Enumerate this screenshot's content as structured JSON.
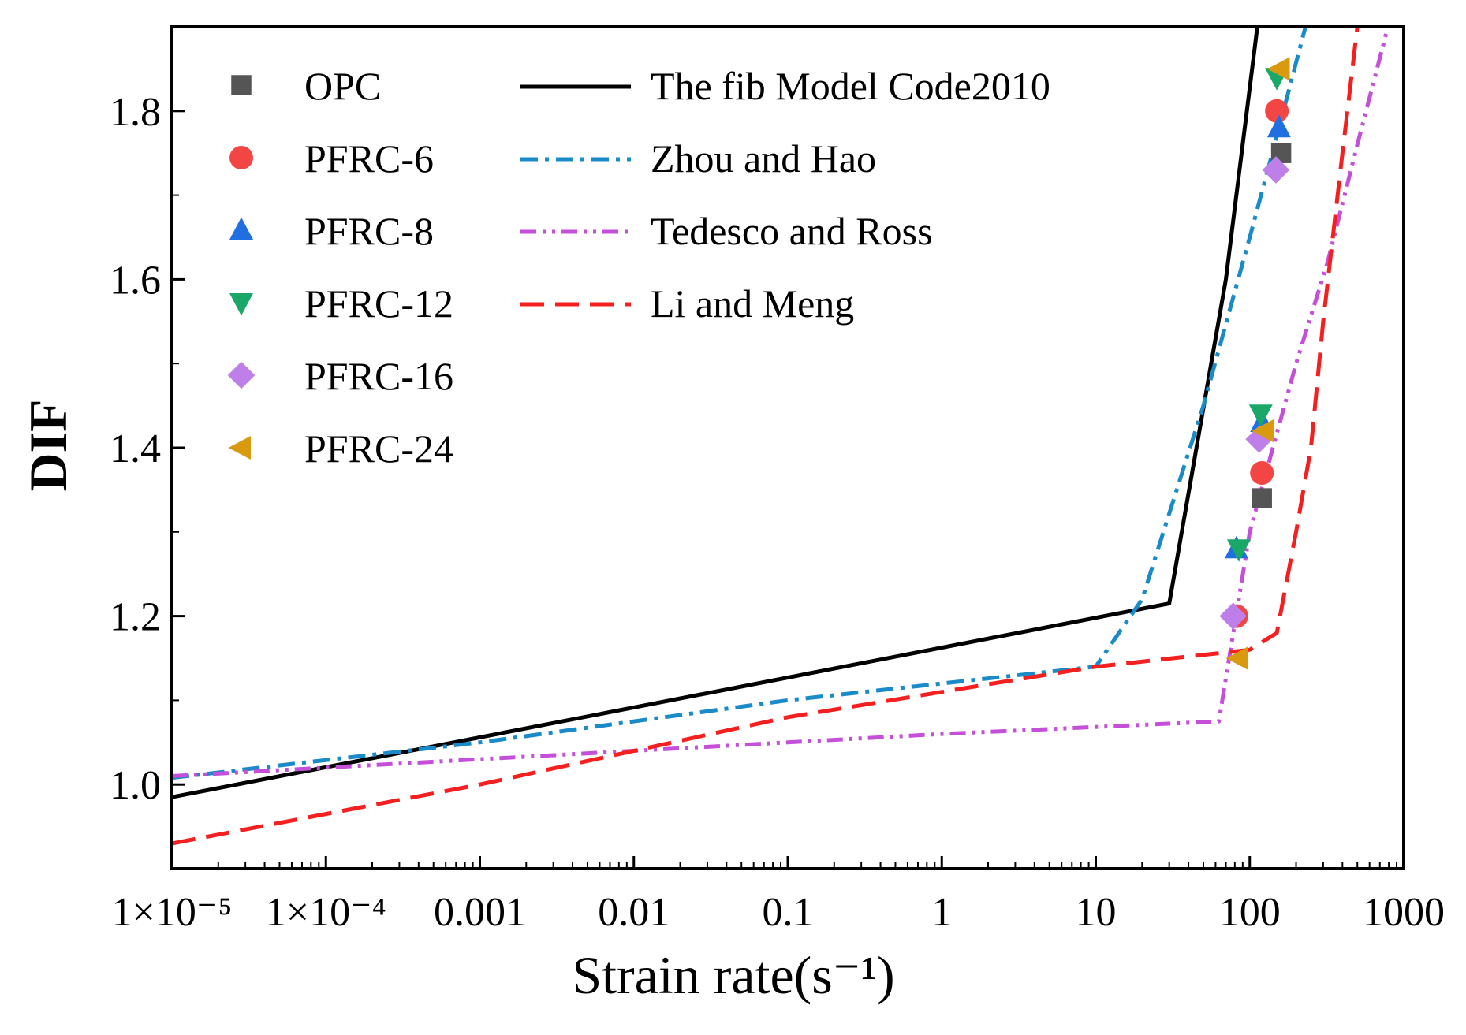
{
  "chart_data": {
    "type": "line",
    "title": "",
    "xlabel": "Strain rate(s⁻¹)",
    "ylabel": "DIF",
    "xscale": "log",
    "xlim": [
      1e-05,
      1000
    ],
    "ylim": [
      0.9,
      1.9
    ],
    "grid": false,
    "legend_location": "top-left",
    "x_ticks": [
      {
        "value": 1e-05,
        "label": "1×10⁻⁵"
      },
      {
        "value": 0.0001,
        "label": "1×10⁻⁴"
      },
      {
        "value": 0.001,
        "label": "0.001"
      },
      {
        "value": 0.01,
        "label": "0.01"
      },
      {
        "value": 0.1,
        "label": "0.1"
      },
      {
        "value": 1,
        "label": "1"
      },
      {
        "value": 10,
        "label": "10"
      },
      {
        "value": 100,
        "label": "100"
      },
      {
        "value": 1000,
        "label": "1000"
      }
    ],
    "y_ticks": [
      {
        "value": 1.0,
        "label": "1.0"
      },
      {
        "value": 1.2,
        "label": "1.2"
      },
      {
        "value": 1.4,
        "label": "1.4"
      },
      {
        "value": 1.6,
        "label": "1.6"
      },
      {
        "value": 1.8,
        "label": "1.8"
      }
    ],
    "scatter_series": [
      {
        "name": "OPC",
        "marker": "square",
        "color": "#555555",
        "points": [
          [
            120,
            1.34
          ],
          [
            160,
            1.75
          ]
        ]
      },
      {
        "name": "PFRC-6",
        "marker": "circle",
        "color": "#f44545",
        "points": [
          [
            82,
            1.2
          ],
          [
            120,
            1.37
          ],
          [
            150,
            1.8
          ]
        ]
      },
      {
        "name": "PFRC-8",
        "marker": "triangle-up",
        "color": "#1f6fe0",
        "points": [
          [
            82,
            1.28
          ],
          [
            120,
            1.43
          ],
          [
            155,
            1.78
          ]
        ]
      },
      {
        "name": "PFRC-12",
        "marker": "triangle-down",
        "color": "#1aa868",
        "points": [
          [
            85,
            1.28
          ],
          [
            118,
            1.44
          ],
          [
            150,
            1.84
          ]
        ]
      },
      {
        "name": "PFRC-16",
        "marker": "diamond",
        "color": "#bf7fe8",
        "points": [
          [
            78,
            1.2
          ],
          [
            115,
            1.41
          ],
          [
            148,
            1.73
          ]
        ]
      },
      {
        "name": "PFRC-24",
        "marker": "triangle-left",
        "color": "#d99a10",
        "points": [
          [
            85,
            1.15
          ],
          [
            125,
            1.42
          ],
          [
            158,
            1.85
          ]
        ]
      }
    ],
    "line_series": [
      {
        "name": "The fib Model Code2010",
        "color": "#000000",
        "style": "solid",
        "points": [
          [
            1e-05,
            0.985
          ],
          [
            30,
            1.215
          ],
          [
            70,
            1.6
          ],
          [
            112,
            1.9
          ]
        ]
      },
      {
        "name": "Zhou and Hao",
        "color": "#1a8ac9",
        "style": "dashdot",
        "points": [
          [
            1e-05,
            1.008
          ],
          [
            0.001,
            1.05
          ],
          [
            0.1,
            1.1
          ],
          [
            10,
            1.14
          ],
          [
            20,
            1.22
          ],
          [
            50,
            1.45
          ],
          [
            100,
            1.65
          ],
          [
            150,
            1.77
          ],
          [
            230,
            1.9
          ]
        ]
      },
      {
        "name": "Tedesco and Ross",
        "color": "#c44fd8",
        "style": "dashdotdot",
        "points": [
          [
            1e-05,
            1.01
          ],
          [
            1,
            1.06
          ],
          [
            63,
            1.075
          ],
          [
            100,
            1.3
          ],
          [
            200,
            1.5
          ],
          [
            320,
            1.62
          ],
          [
            500,
            1.76
          ],
          [
            790,
            1.9
          ]
        ]
      },
      {
        "name": "Li and Meng",
        "color": "#f42020",
        "style": "dashed",
        "points": [
          [
            1e-05,
            0.93
          ],
          [
            0.001,
            1.0
          ],
          [
            0.1,
            1.08
          ],
          [
            10,
            1.14
          ],
          [
            100,
            1.16
          ],
          [
            150,
            1.18
          ],
          [
            200,
            1.3
          ],
          [
            250,
            1.4
          ],
          [
            300,
            1.55
          ],
          [
            400,
            1.75
          ],
          [
            500,
            1.9
          ]
        ]
      }
    ]
  }
}
